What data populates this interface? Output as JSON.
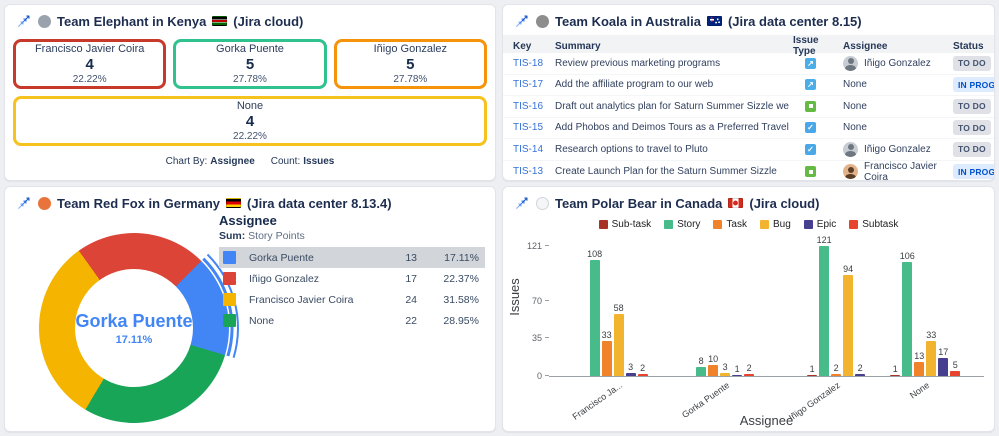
{
  "panels": {
    "elephant": {
      "title": "Team Elephant in Kenya",
      "suffix": "(Jira cloud)",
      "animal_icon": "elephant-emoji",
      "flag_icon": "kenya-flag",
      "logo_icon": "custom-charts-logo",
      "cards": [
        {
          "name": "Francisco Javier Coira",
          "count": "4",
          "percent": "22.22%",
          "color": "#c6392b",
          "wide": false
        },
        {
          "name": "Gorka Puente",
          "count": "5",
          "percent": "27.78%",
          "color": "#2fc18e",
          "wide": false
        },
        {
          "name": "Iñigo Gonzalez",
          "count": "5",
          "percent": "27.78%",
          "color": "#f5930b",
          "wide": false
        },
        {
          "name": "None",
          "count": "4",
          "percent": "22.22%",
          "color": "#f6c21d",
          "wide": true
        }
      ],
      "footer": {
        "chart_by_label": "Chart By:",
        "chart_by_value": "Assignee",
        "count_label": "Count:",
        "count_value": "Issues"
      }
    },
    "koala": {
      "title": "Team Koala in Australia",
      "suffix": "(Jira data center 8.15)",
      "animal_icon": "koala-emoji",
      "flag_icon": "australia-flag",
      "columns": {
        "key": "Key",
        "summary": "Summary",
        "issue_type": "Issue Type",
        "assignee": "Assignee",
        "status": "Status"
      },
      "rows": [
        {
          "key": "TIS-18",
          "summary": "Review previous marketing programs",
          "issue_type": "subtask",
          "assignee": "Iñigo Gonzalez",
          "avatar": "inigo",
          "status": "TO DO",
          "status_kind": "todo"
        },
        {
          "key": "TIS-17",
          "summary": "Add the affiliate program to our web",
          "issue_type": "subtask",
          "assignee": "None",
          "avatar": null,
          "status": "IN PROGRESS",
          "status_kind": "inprogress"
        },
        {
          "key": "TIS-16",
          "summary": "Draft out analytics plan for Saturn Summer Sizzle website",
          "issue_type": "story",
          "assignee": "None",
          "avatar": null,
          "status": "TO DO",
          "status_kind": "todo"
        },
        {
          "key": "TIS-15",
          "summary": "Add Phobos and Deimos Tours as a Preferred Travel Partner",
          "issue_type": "task",
          "assignee": "None",
          "avatar": null,
          "status": "TO DO",
          "status_kind": "todo"
        },
        {
          "key": "TIS-14",
          "summary": "Research options to travel to Pluto",
          "issue_type": "task",
          "assignee": "Iñigo Gonzalez",
          "avatar": "inigo",
          "status": "TO DO",
          "status_kind": "todo"
        },
        {
          "key": "TIS-13",
          "summary": "Create Launch Plan for the Saturn Summer Sizzle",
          "issue_type": "story",
          "assignee": "Francisco Javier Coira",
          "avatar": "francisco",
          "status": "IN PROGRESS",
          "status_kind": "inprogress"
        }
      ]
    },
    "redfox": {
      "title": "Team Red Fox in Germany",
      "suffix": "(Jira data center 8.13.4)",
      "animal_icon": "fox-emoji",
      "flag_icon": "germany-flag",
      "legend_title": "Assignee",
      "sum_label": "Sum:",
      "sum_value": "Story Points",
      "center_name": "Gorka Puente",
      "center_percent": "17.11%",
      "chart_data": {
        "type": "pie",
        "title": "Assignee",
        "sum": "Story Points",
        "start_angle": 45,
        "clockwise_order": [
          0,
          3,
          2,
          1
        ],
        "slices": [
          {
            "label": "Gorka Puente",
            "value": 13,
            "percent": "17.11%",
            "color": "#4285f4",
            "highlighted": true
          },
          {
            "label": "Iñigo Gonzalez",
            "value": 17,
            "percent": "22.37%",
            "color": "#db4437",
            "highlighted": false
          },
          {
            "label": "Francisco Javier Coira",
            "value": 24,
            "percent": "31.58%",
            "color": "#f4b400",
            "highlighted": false
          },
          {
            "label": "None",
            "value": 22,
            "percent": "28.95%",
            "color": "#18a558",
            "highlighted": false
          }
        ]
      }
    },
    "polarbear": {
      "title": "Team Polar Bear in Canada",
      "suffix": "(Jira cloud)",
      "animal_icon": "polar-bear-emoji",
      "flag_icon": "canada-flag",
      "chart_data": {
        "type": "bar",
        "xlabel": "Assignee",
        "ylabel": "Issues",
        "yticks": [
          0,
          35,
          70,
          121
        ],
        "ymax": 121,
        "legend_position": "top",
        "categories": [
          "Francisco Ja...",
          "Gorka Puente",
          "Iñigo Gonzalez",
          "None"
        ],
        "series": [
          {
            "name": "Sub-task",
            "color": "#a93226",
            "values": [
              0,
              0,
              1,
              1
            ]
          },
          {
            "name": "Story",
            "color": "#47bb89",
            "values": [
              108,
              8,
              121,
              106
            ]
          },
          {
            "name": "Task",
            "color": "#f0832a",
            "values": [
              33,
              10,
              2,
              13
            ]
          },
          {
            "name": "Bug",
            "color": "#f2b42f",
            "values": [
              58,
              3,
              94,
              33
            ]
          },
          {
            "name": "Epic",
            "color": "#463f8f",
            "values": [
              3,
              1,
              2,
              17
            ]
          },
          {
            "name": "Subtask",
            "color": "#e8432c",
            "values": [
              2,
              2,
              0,
              5
            ]
          }
        ]
      }
    }
  }
}
